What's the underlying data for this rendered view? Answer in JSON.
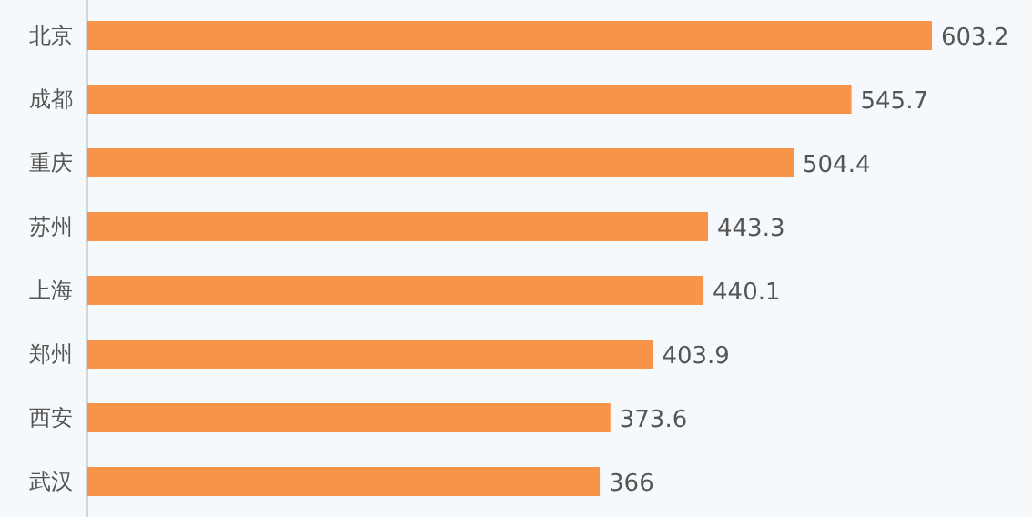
{
  "chart_data": {
    "type": "bar",
    "orientation": "horizontal",
    "categories": [
      "北京",
      "成都",
      "重庆",
      "苏州",
      "上海",
      "郑州",
      "西安",
      "武汉"
    ],
    "values": [
      603.2,
      545.7,
      504.4,
      443.3,
      440.1,
      403.9,
      373.6,
      366
    ],
    "color": "#f7944a",
    "data_labels": true
  }
}
